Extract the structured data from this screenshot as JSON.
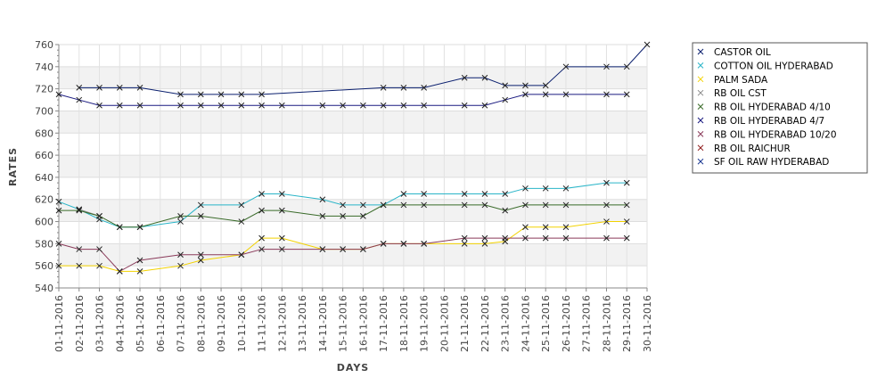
{
  "chart_data": {
    "type": "line",
    "title": "",
    "xlabel": "DAYS",
    "ylabel": "RATES",
    "ylim": [
      540,
      760
    ],
    "y_ticks": [
      540,
      560,
      580,
      600,
      620,
      640,
      660,
      680,
      700,
      720,
      740,
      760
    ],
    "grid": true,
    "legend_position": "right",
    "categories": [
      "01-11-2016",
      "02-11-2016",
      "03-11-2016",
      "04-11-2016",
      "05-11-2016",
      "06-11-2016",
      "07-11-2016",
      "08-11-2016",
      "09-11-2016",
      "10-11-2016",
      "11-11-2016",
      "12-11-2016",
      "13-11-2016",
      "14-11-2016",
      "15-11-2016",
      "16-11-2016",
      "17-11-2016",
      "18-11-2016",
      "19-11-2016",
      "20-11-2016",
      "21-11-2016",
      "22-11-2016",
      "23-11-2016",
      "24-11-2016",
      "25-11-2016",
      "26-11-2016",
      "27-11-2016",
      "28-11-2016",
      "29-11-2016",
      "30-11-2016"
    ],
    "series": [
      {
        "name": "CASTOR OIL",
        "color": "#0a1f6e",
        "values": [
          null,
          721,
          721,
          721,
          721,
          null,
          715,
          715,
          715,
          715,
          715,
          null,
          null,
          null,
          null,
          null,
          721,
          721,
          721,
          null,
          730,
          730,
          723,
          723,
          723,
          740,
          null,
          740,
          740,
          760
        ]
      },
      {
        "name": "COTTON OIL HYDERABAD",
        "color": "#2ab5c8",
        "values": [
          618,
          611,
          602,
          595,
          595,
          null,
          600,
          615,
          null,
          615,
          625,
          625,
          null,
          620,
          615,
          615,
          615,
          625,
          625,
          null,
          625,
          625,
          625,
          630,
          630,
          630,
          null,
          635,
          635,
          null
        ]
      },
      {
        "name": "PALM SADA",
        "color": "#f2d200",
        "values": [
          560,
          560,
          560,
          555,
          555,
          null,
          560,
          565,
          null,
          570,
          585,
          585,
          null,
          575,
          575,
          575,
          580,
          580,
          580,
          null,
          580,
          580,
          582,
          595,
          595,
          595,
          null,
          600,
          600,
          null
        ]
      },
      {
        "name": "RB OIL CST",
        "color": "#888888",
        "values": [
          null,
          611,
          605,
          null,
          null,
          null,
          null,
          null,
          null,
          null,
          null,
          null,
          null,
          null,
          null,
          null,
          null,
          null,
          null,
          null,
          null,
          null,
          null,
          null,
          null,
          null,
          null,
          null,
          null,
          null
        ]
      },
      {
        "name": "RB OIL HYDERABAD  4/10",
        "color": "#3a6b2a",
        "values": [
          610,
          610,
          605,
          595,
          595,
          null,
          605,
          605,
          null,
          600,
          610,
          610,
          null,
          605,
          605,
          605,
          615,
          615,
          615,
          null,
          615,
          615,
          610,
          615,
          615,
          615,
          null,
          615,
          615,
          null
        ]
      },
      {
        "name": "RB OIL HYDERABAD  4/7",
        "color": "#1a1a80",
        "values": [
          715,
          710,
          705,
          705,
          705,
          null,
          705,
          705,
          705,
          705,
          705,
          705,
          null,
          705,
          705,
          705,
          705,
          705,
          705,
          null,
          705,
          705,
          710,
          715,
          715,
          715,
          null,
          715,
          715,
          null
        ]
      },
      {
        "name": "RB OIL HYDERABAD 10/20",
        "color": "#8a3a5a",
        "values": [
          580,
          575,
          575,
          555,
          565,
          null,
          570,
          570,
          null,
          570,
          575,
          575,
          null,
          575,
          575,
          575,
          580,
          580,
          580,
          null,
          585,
          585,
          585,
          585,
          585,
          585,
          null,
          585,
          585,
          null
        ]
      },
      {
        "name": "RB OIL RAICHUR",
        "color": "#8a1010",
        "values": [
          null,
          null,
          null,
          null,
          null,
          null,
          null,
          null,
          null,
          null,
          null,
          null,
          null,
          null,
          null,
          null,
          null,
          null,
          null,
          null,
          null,
          null,
          null,
          null,
          null,
          null,
          null,
          null,
          null,
          null
        ]
      },
      {
        "name": "SF OIL RAW HYDERABAD",
        "color": "#0a2a8a",
        "values": [
          null,
          null,
          null,
          null,
          null,
          null,
          null,
          null,
          null,
          null,
          null,
          null,
          null,
          null,
          null,
          null,
          null,
          null,
          null,
          null,
          null,
          null,
          null,
          null,
          null,
          null,
          null,
          null,
          null,
          null
        ]
      }
    ]
  }
}
